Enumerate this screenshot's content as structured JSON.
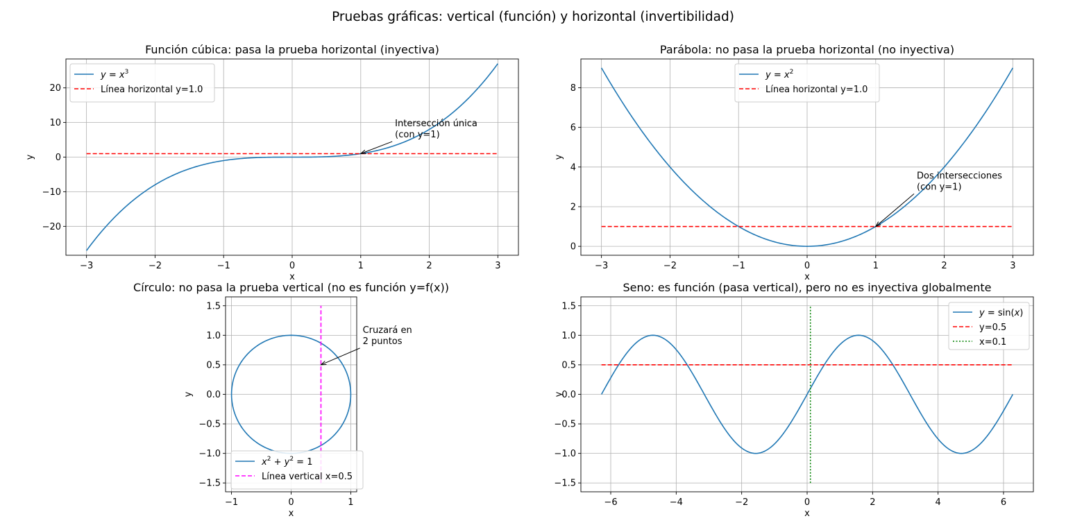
{
  "suptitle": "Pruebas gráficas: vertical (función) y horizontal (invertibilidad)",
  "colors": {
    "curve": "#1f77b4",
    "horizontal": "#ff0000",
    "vertical_magenta": "#ff00ff",
    "vertical_green": "#008000",
    "grid": "#b0b0b0"
  },
  "chart_data": [
    {
      "type": "line",
      "title": "Función cúbica: pasa la prueba horizontal (inyectiva)",
      "xlabel": "x",
      "ylabel": "y",
      "xlim": [
        -3.3,
        3.3
      ],
      "ylim": [
        -28.35,
        28.35
      ],
      "xticks": [
        -3,
        -2,
        -1,
        0,
        1,
        2,
        3
      ],
      "yticks": [
        -20,
        -10,
        0,
        10,
        20
      ],
      "xtick_labels": [
        "−3",
        "−2",
        "−1",
        "0",
        "1",
        "2",
        "3"
      ],
      "ytick_labels": [
        "−20",
        "−10",
        "0",
        "10",
        "20"
      ],
      "grid": true,
      "legend_position": "upper-left",
      "series": [
        {
          "name": "y = x³",
          "function": "x^3",
          "x_range": [
            -3,
            3
          ],
          "style": "solid",
          "color": "#1f77b4"
        },
        {
          "name": "Línea horizontal y=1.0",
          "x": [
            -3,
            3
          ],
          "y": [
            1,
            1
          ],
          "style": "dashed",
          "color": "#ff0000"
        }
      ],
      "annotations": [
        {
          "text": [
            "Intersección única",
            "(con y=1)"
          ],
          "point": [
            1,
            1
          ],
          "text_pos": [
            1.5,
            6.5
          ]
        }
      ]
    },
    {
      "type": "line",
      "title": "Parábola: no pasa la prueba horizontal (no inyectiva)",
      "xlabel": "x",
      "ylabel": "y",
      "xlim": [
        -3.3,
        3.3
      ],
      "ylim": [
        -0.45,
        9.45
      ],
      "xticks": [
        -3,
        -2,
        -1,
        0,
        1,
        2,
        3
      ],
      "yticks": [
        0,
        2,
        4,
        6,
        8
      ],
      "xtick_labels": [
        "−3",
        "−2",
        "−1",
        "0",
        "1",
        "2",
        "3"
      ],
      "ytick_labels": [
        "0",
        "2",
        "4",
        "6",
        "8"
      ],
      "grid": true,
      "legend_position": "upper-center",
      "series": [
        {
          "name": "y = x²",
          "function": "x^2",
          "x_range": [
            -3,
            3
          ],
          "style": "solid",
          "color": "#1f77b4"
        },
        {
          "name": "Línea horizontal y=1.0",
          "x": [
            -3,
            3
          ],
          "y": [
            1,
            1
          ],
          "style": "dashed",
          "color": "#ff0000"
        }
      ],
      "annotations": [
        {
          "text": [
            "Dos intersecciones",
            "(con y=1)"
          ],
          "point": [
            1,
            1
          ],
          "text_pos": [
            1.6,
            3.0
          ]
        }
      ]
    },
    {
      "type": "line",
      "title": "Círculo: no pasa la prueba vertical (no es función y=f(x))",
      "xlabel": "x",
      "ylabel": "y",
      "xlim": [
        -1.1,
        1.1
      ],
      "ylim": [
        -1.65,
        1.65
      ],
      "xticks": [
        -1,
        0,
        1
      ],
      "yticks": [
        -1.5,
        -1.0,
        -0.5,
        0.0,
        0.5,
        1.0,
        1.5
      ],
      "xtick_labels": [
        "−1",
        "0",
        "1"
      ],
      "ytick_labels": [
        "−1.5",
        "−1.0",
        "−0.5",
        "0.0",
        "0.5",
        "1.0",
        "1.5"
      ],
      "grid": true,
      "legend_position": "lower-right",
      "series": [
        {
          "name": "x² + y² = 1",
          "function": "circle",
          "radius": 1,
          "style": "solid",
          "color": "#1f77b4"
        },
        {
          "name": "Línea vertical x=0.5",
          "x": [
            0.5,
            0.5
          ],
          "y": [
            -1.5,
            1.5
          ],
          "style": "dashed",
          "color": "#ff00ff"
        }
      ],
      "annotations": [
        {
          "text": [
            "Cruzará en",
            "2 puntos"
          ],
          "point": [
            0.5,
            0.5
          ],
          "text_pos": [
            1.2,
            0.9
          ]
        }
      ]
    },
    {
      "type": "line",
      "title": "Seno: es función (pasa vertical), pero no es inyectiva globalmente",
      "xlabel": "x",
      "ylabel": "y",
      "xlim": [
        -6.912,
        6.912
      ],
      "ylim": [
        -1.65,
        1.65
      ],
      "xticks": [
        -6,
        -4,
        -2,
        0,
        2,
        4,
        6
      ],
      "yticks": [
        -1.5,
        -1.0,
        -0.5,
        0.0,
        0.5,
        1.0,
        1.5
      ],
      "xtick_labels": [
        "−6",
        "−4",
        "−2",
        "0",
        "2",
        "4",
        "6"
      ],
      "ytick_labels": [
        "−1.5",
        "−1.0",
        "−0.5",
        "0.0",
        "0.5",
        "1.0",
        "1.5"
      ],
      "grid": true,
      "legend_position": "upper-right",
      "series": [
        {
          "name": "y = sin(x)",
          "function": "sin",
          "x_range": [
            -6.2832,
            6.2832
          ],
          "style": "solid",
          "color": "#1f77b4"
        },
        {
          "name": "y=0.5",
          "x": [
            -6.2832,
            6.2832
          ],
          "y": [
            0.5,
            0.5
          ],
          "style": "dashed",
          "color": "#ff0000"
        },
        {
          "name": "x=0.1",
          "x": [
            0.1,
            0.1
          ],
          "y": [
            -1.5,
            1.5
          ],
          "style": "dotted",
          "color": "#008000"
        }
      ],
      "annotations": []
    }
  ]
}
